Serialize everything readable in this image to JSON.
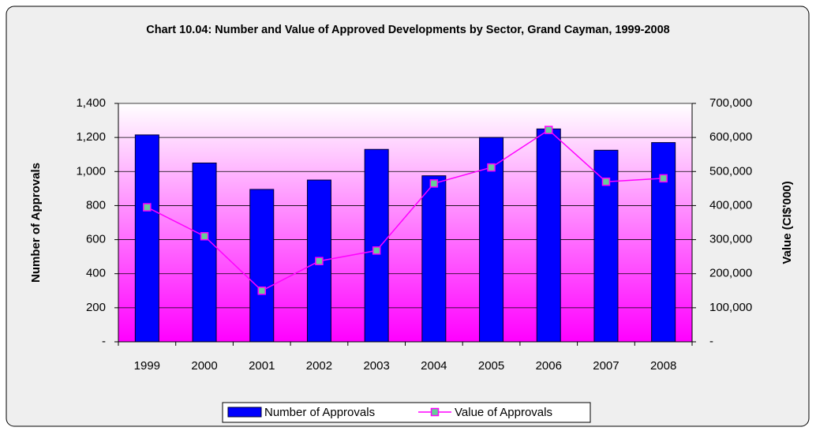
{
  "chart_data": {
    "type": "bar-line",
    "title": "Chart 10.04: Number and Value of Approved Developments by Sector, Grand Cayman, 1999-2008",
    "y_label": "Number of Approvals",
    "y2_label": "Value (CI$'000)",
    "categories": [
      "1999",
      "2000",
      "2001",
      "2002",
      "2003",
      "2004",
      "2005",
      "2006",
      "2007",
      "2008"
    ],
    "series": [
      {
        "name": "Number of Approvals",
        "type": "bar",
        "color": "#0000ff",
        "values": [
          1215,
          1050,
          895,
          950,
          1130,
          975,
          1200,
          1250,
          1125,
          1170
        ]
      },
      {
        "name": "Value of Approvals",
        "type": "line",
        "axis": "y2",
        "color": "#ff00ff",
        "marker_color": "#66cc99",
        "values": [
          395000,
          310000,
          150000,
          237000,
          268000,
          465000,
          512000,
          622000,
          470000,
          480000
        ]
      }
    ],
    "ylim": [
      0,
      1400
    ],
    "yticks": [
      {
        "value": 0,
        "label": "-"
      },
      200,
      400,
      600,
      800,
      {
        "value": 1000,
        "label": "1,000"
      },
      {
        "value": 1200,
        "label": "1,200"
      },
      {
        "value": 1400,
        "label": "1,400"
      }
    ],
    "y2lim": [
      0,
      700000
    ],
    "y2ticks": [
      {
        "value": 0,
        "label": "-"
      },
      {
        "value": 100000,
        "label": "100,000"
      },
      {
        "value": 200000,
        "label": "200,000"
      },
      {
        "value": 300000,
        "label": "300,000"
      },
      {
        "value": 400000,
        "label": "400,000"
      },
      {
        "value": 500000,
        "label": "500,000"
      },
      {
        "value": 600000,
        "label": "600,000"
      },
      {
        "value": 700000,
        "label": "700,000"
      }
    ],
    "grid": true,
    "legend": "bottom"
  }
}
